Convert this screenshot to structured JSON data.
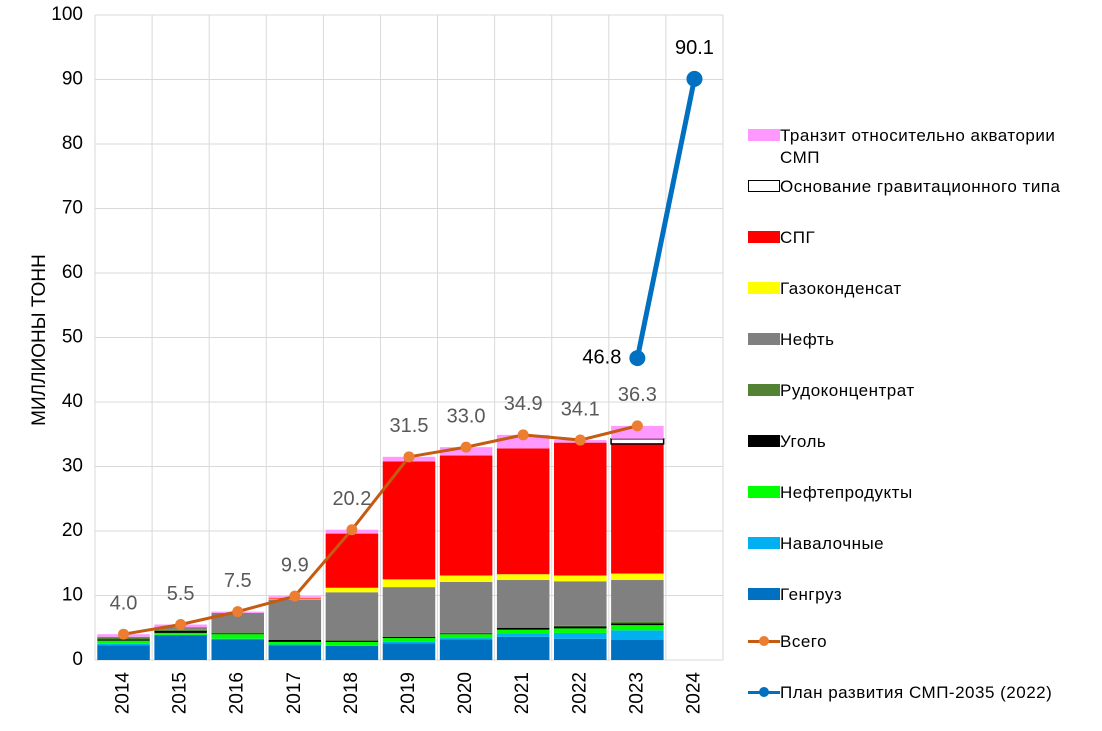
{
  "chart_data": {
    "type": "bar",
    "stacked": true,
    "y_label": "МИЛЛИОНЫ ТОНН",
    "categories": [
      "2014",
      "2015",
      "2016",
      "2017",
      "2018",
      "2019",
      "2020",
      "2021",
      "2022",
      "2023",
      "2024"
    ],
    "ylim": [
      0,
      100
    ],
    "yticks": [
      0,
      10,
      20,
      30,
      40,
      50,
      60,
      70,
      80,
      90,
      100
    ],
    "grid": true,
    "series": [
      {
        "name": "Генгруз",
        "color": "#0070c0",
        "values": [
          2.3,
          3.8,
          3.2,
          2.3,
          2.2,
          2.6,
          3.2,
          3.6,
          3.3,
          3.1,
          null
        ]
      },
      {
        "name": "Навалочные",
        "color": "#00b0f0",
        "values": [
          0.2,
          0.1,
          0.1,
          0.1,
          0.1,
          0.2,
          0.2,
          0.5,
          0.9,
          1.5,
          null
        ]
      },
      {
        "name": "Нефтепродукты",
        "color": "#00ff00",
        "values": [
          0.5,
          0.3,
          0.7,
          0.4,
          0.5,
          0.6,
          0.6,
          0.6,
          0.7,
          0.8,
          null
        ]
      },
      {
        "name": "Уголь",
        "color": "#000000",
        "values": [
          0.2,
          0.3,
          0.1,
          0.3,
          0.2,
          0.2,
          0.1,
          0.3,
          0.3,
          0.3,
          null
        ]
      },
      {
        "name": "Рудоконцентрат",
        "color": "#548235",
        "values": [
          0.3,
          0.2,
          0.2,
          0.1,
          0.1,
          0.1,
          0.1,
          0.1,
          0.1,
          0.2,
          null
        ]
      },
      {
        "name": "Нефть",
        "color": "#808080",
        "values": [
          0.1,
          0.4,
          3.0,
          6.2,
          7.4,
          7.6,
          7.9,
          7.3,
          6.9,
          6.5,
          null
        ]
      },
      {
        "name": "Газоконденсат",
        "color": "#ffff00",
        "values": [
          0,
          0,
          0,
          0.1,
          0.7,
          1.2,
          1.0,
          0.9,
          0.9,
          1.0,
          null
        ]
      },
      {
        "name": "СПГ",
        "color": "#ff0000",
        "values": [
          0,
          0,
          0,
          0.1,
          8.4,
          18.3,
          18.6,
          19.5,
          20.6,
          20.1,
          null
        ]
      },
      {
        "name": "Основание гравитационного типа",
        "color": "#ffffff",
        "edge": "#000000",
        "values": [
          0,
          0,
          0,
          0,
          0,
          0,
          0,
          0,
          0,
          0.8,
          null
        ]
      },
      {
        "name": "Транзит относительно акватории СМП",
        "color": "#ff99ff",
        "values": [
          0.4,
          0.4,
          0.2,
          0.3,
          0.6,
          0.7,
          1.3,
          2.1,
          0.4,
          2.0,
          null
        ]
      }
    ],
    "lines": [
      {
        "name": "Всего",
        "color": "#c55a11",
        "marker_color": "#ed7d31",
        "values": [
          4.0,
          5.5,
          7.5,
          9.9,
          20.2,
          31.5,
          33.0,
          34.9,
          34.1,
          36.3,
          null
        ],
        "value_labels": [
          "4.0",
          "5.5",
          "7.5",
          "9.9",
          "20.2",
          "31.5",
          "33.0",
          "34.9",
          "34.1",
          "36.3",
          null
        ]
      },
      {
        "name": "План развития СМП-2035 (2022)",
        "color": "#0070c0",
        "marker_color": "#0070c0",
        "values": [
          null,
          null,
          null,
          null,
          null,
          null,
          null,
          null,
          null,
          46.8,
          90.1
        ],
        "value_labels": [
          null,
          null,
          null,
          null,
          null,
          null,
          null,
          null,
          null,
          "46.8",
          "90.1"
        ]
      }
    ]
  }
}
